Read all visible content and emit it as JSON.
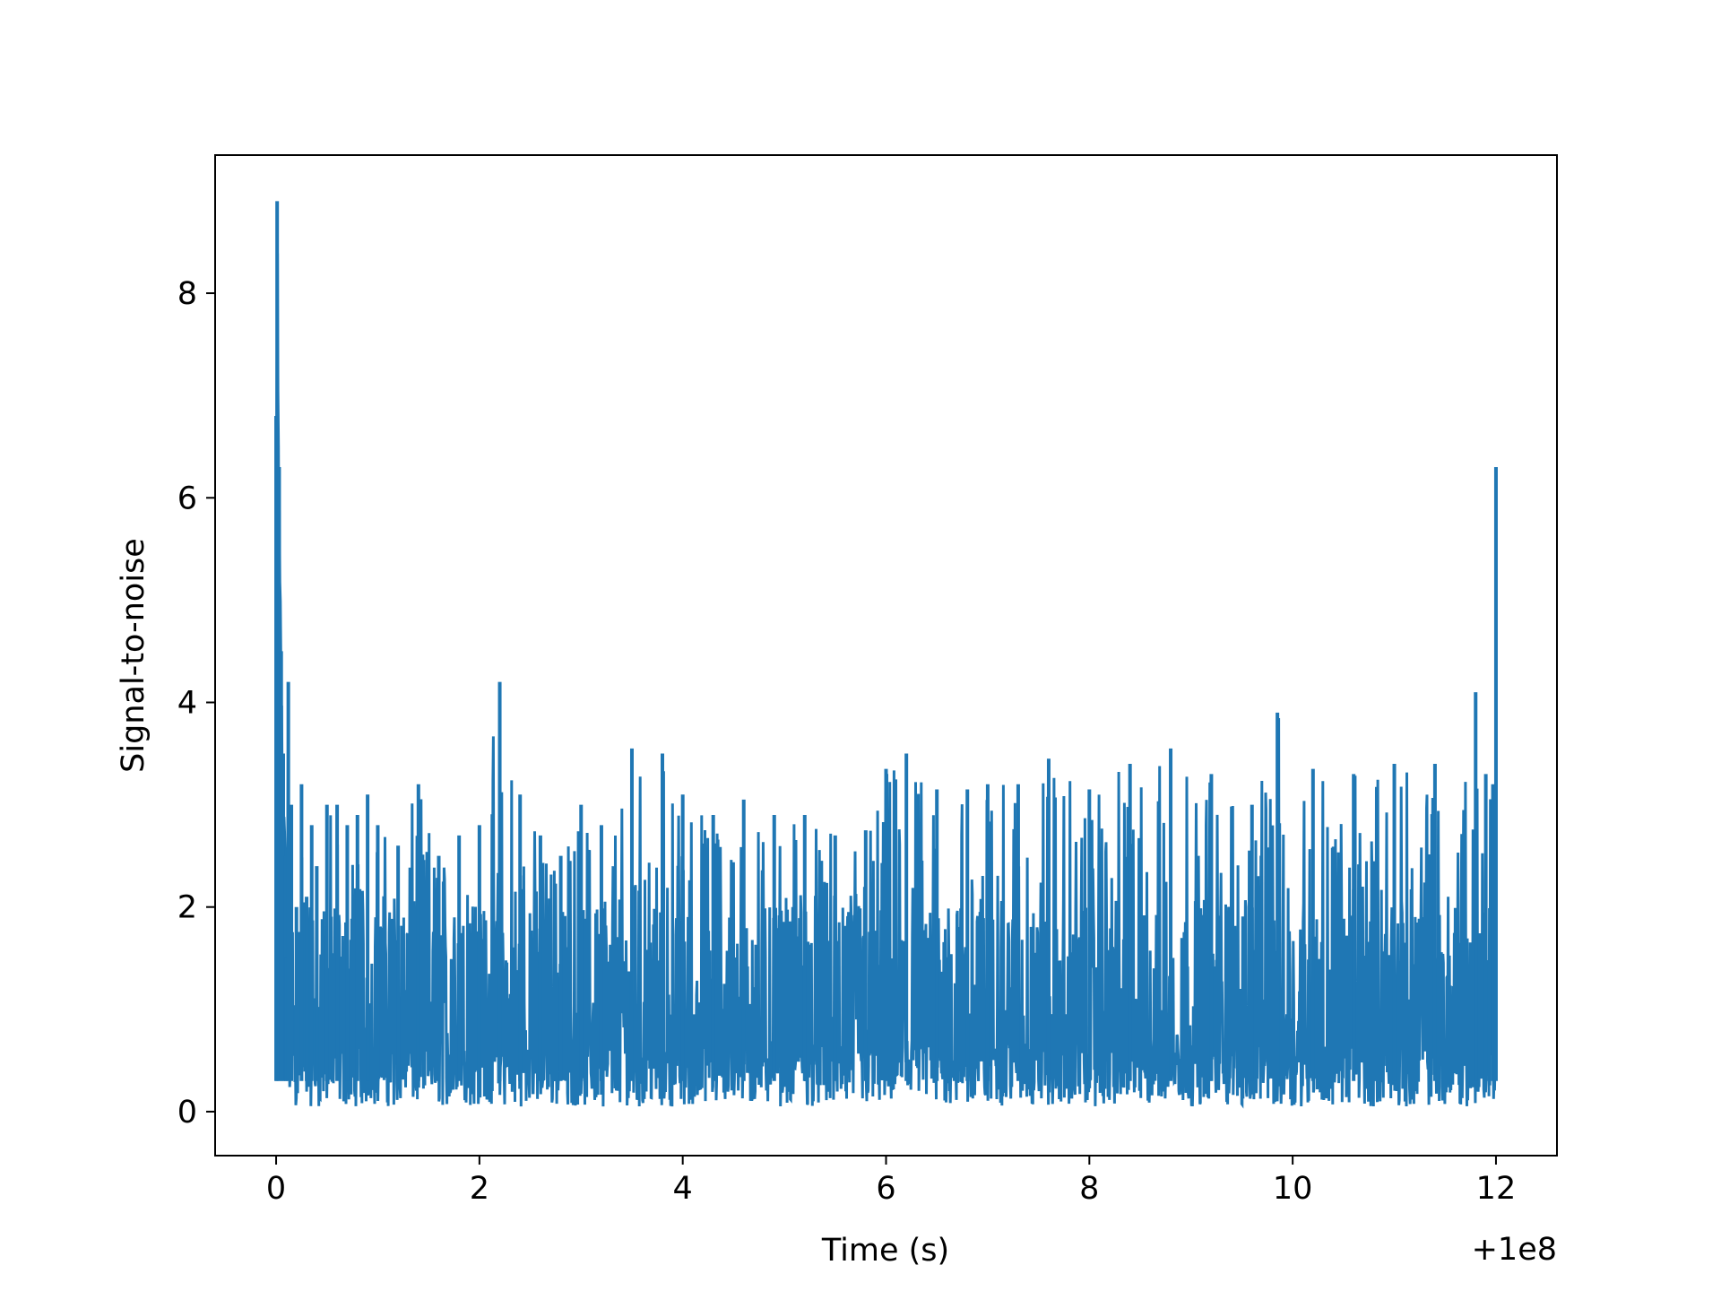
{
  "chart_data": {
    "type": "line",
    "title": "",
    "xlabel": "Time (s)",
    "ylabel": "Signal-to-noise",
    "x_offset_label": "+1e8",
    "xlim": [
      -0.6,
      12.6
    ],
    "ylim": [
      -0.43,
      9.35
    ],
    "xticks": [
      0,
      2,
      4,
      6,
      8,
      10,
      12
    ],
    "xtick_labels": [
      "0",
      "2",
      "4",
      "6",
      "8",
      "10",
      "12"
    ],
    "yticks": [
      0,
      2,
      4,
      6,
      8
    ],
    "ytick_labels": [
      "0",
      "2",
      "4",
      "6",
      "8"
    ],
    "grid": false,
    "legend": "none",
    "series": [
      {
        "color": "#1f77b4",
        "x": [
          0.0,
          0.01,
          0.03,
          0.05,
          0.07,
          0.09,
          0.1,
          0.12,
          0.15,
          0.2,
          0.25,
          0.3,
          0.35,
          0.4,
          0.5,
          0.6,
          0.7,
          0.8,
          0.9,
          1.0,
          1.2,
          1.4,
          1.6,
          1.8,
          2.0,
          2.2,
          2.4,
          2.6,
          2.8,
          3.0,
          3.2,
          3.5,
          3.8,
          4.0,
          4.3,
          4.6,
          4.9,
          5.2,
          5.5,
          5.8,
          6.0,
          6.2,
          6.5,
          6.8,
          7.0,
          7.3,
          7.6,
          8.0,
          8.4,
          8.8,
          9.2,
          9.6,
          9.85,
          10.2,
          10.6,
          11.0,
          11.4,
          11.8,
          11.9,
          11.97,
          12.0
        ],
        "y": [
          6.8,
          8.9,
          6.3,
          4.5,
          3.5,
          2.5,
          1.5,
          4.2,
          3.0,
          2.0,
          3.2,
          2.1,
          2.8,
          2.4,
          3.0,
          3.0,
          2.8,
          2.9,
          3.1,
          2.8,
          2.6,
          3.2,
          2.5,
          2.7,
          2.8,
          4.2,
          3.1,
          2.7,
          2.5,
          3.0,
          2.8,
          3.55,
          3.5,
          3.1,
          2.9,
          3.05,
          2.9,
          2.9,
          2.7,
          2.75,
          3.35,
          3.5,
          3.15,
          3.15,
          3.2,
          3.2,
          3.45,
          3.15,
          3.4,
          3.55,
          3.3,
          3.0,
          3.9,
          3.35,
          3.3,
          3.4,
          3.4,
          4.1,
          3.3,
          3.2,
          6.3
        ]
      }
    ]
  }
}
